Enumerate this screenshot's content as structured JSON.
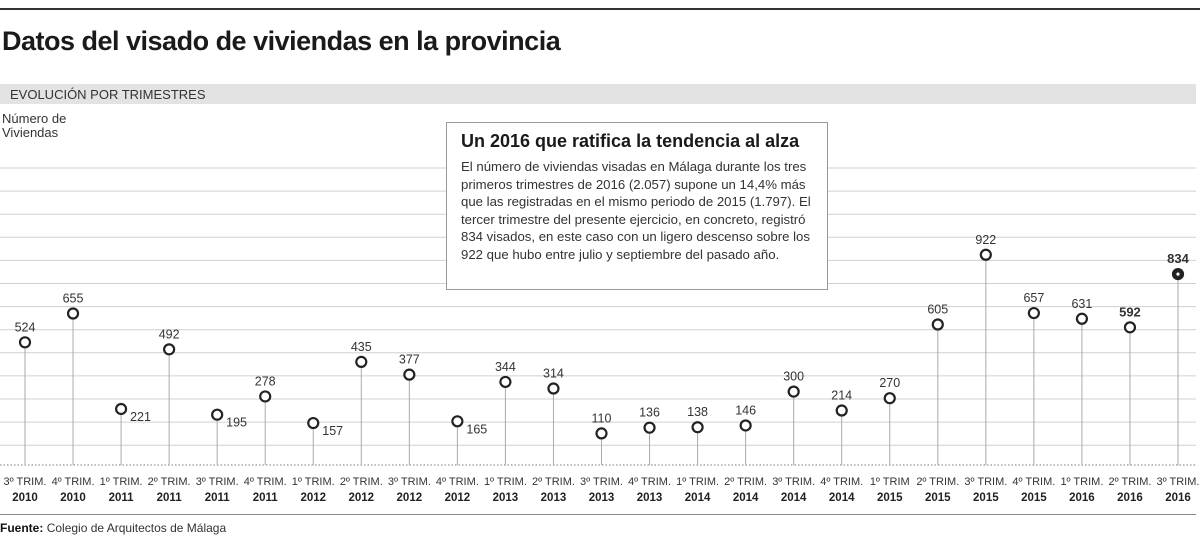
{
  "title": "Datos del visado de viviendas en la provincia",
  "subtitle": "EVOLUCIÓN POR TRIMESTRES",
  "callout": {
    "heading": "Un 2016 que ratifica la tendencia al alza",
    "text": "El número de viviendas visadas en Málaga durante los tres primeros trimestres de 2016 (2.057) supone un 14,4% más que las registradas en el mismo periodo de 2015 (1.797). El tercer trimestre del presente ejercicio, en concreto, registró 834 visados, en este caso con un ligero descenso sobre los 922 que hubo entre julio y septiembre del pasado año."
  },
  "source_label": "Fuente:",
  "source": "Colegio de Arquitectos de Málaga",
  "chart_data": {
    "type": "line",
    "style": "lollipop",
    "ylabel": "Número de Viviendas",
    "grid": true,
    "categories": [
      [
        "3º TRIM.",
        "2010"
      ],
      [
        "4º TRIM.",
        "2010"
      ],
      [
        "1º TRIM.",
        "2011"
      ],
      [
        "2º TRIM.",
        "2011"
      ],
      [
        "3º TRIM.",
        "2011"
      ],
      [
        "4º TRIM.",
        "2011"
      ],
      [
        "1º TRIM.",
        "2012"
      ],
      [
        "2º TRIM.",
        "2012"
      ],
      [
        "3º TRIM.",
        "2012"
      ],
      [
        "4º TRIM.",
        "2012"
      ],
      [
        "1º TRIM.",
        "2013"
      ],
      [
        "2º TRIM.",
        "2013"
      ],
      [
        "3º TRIM.",
        "2013"
      ],
      [
        "4º TRIM.",
        "2013"
      ],
      [
        "1º TRIM.",
        "2014"
      ],
      [
        "2º TRIM.",
        "2014"
      ],
      [
        "3º TRIM.",
        "2014"
      ],
      [
        "4º TRIM.",
        "2014"
      ],
      [
        "1º TRIM",
        "2015"
      ],
      [
        "2º TRIM.",
        "2015"
      ],
      [
        "3º TRIM.",
        "2015"
      ],
      [
        "4º TRIM.",
        "2015"
      ],
      [
        "1º TRIM.",
        "2016"
      ],
      [
        "2º TRIM.",
        "2016"
      ],
      [
        "3º TRIM.",
        "2016"
      ]
    ],
    "values": [
      524,
      655,
      221,
      492,
      195,
      278,
      157,
      435,
      377,
      165,
      344,
      314,
      110,
      136,
      138,
      146,
      300,
      214,
      270,
      605,
      922,
      657,
      631,
      592,
      834
    ],
    "highlighted": [
      592,
      834
    ]
  }
}
